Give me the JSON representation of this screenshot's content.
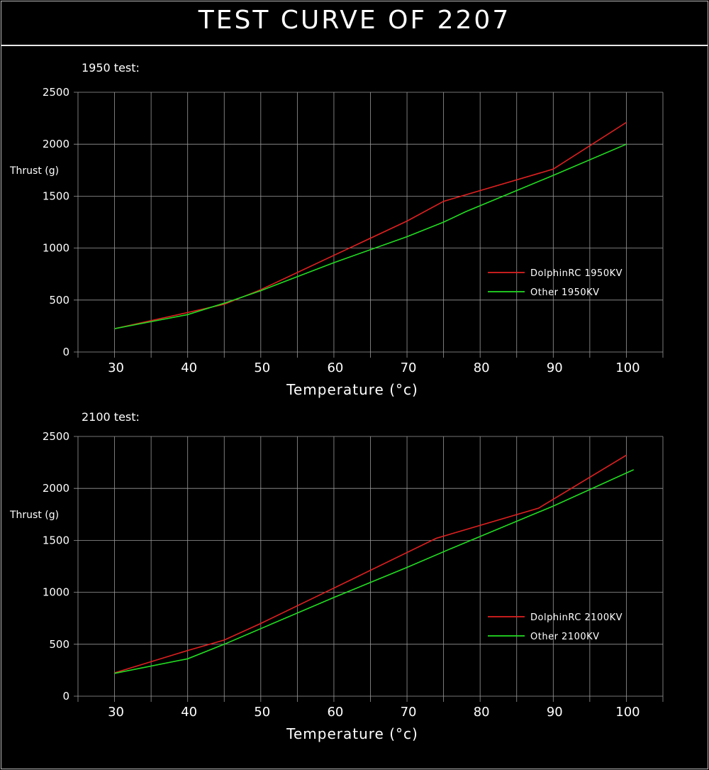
{
  "page": {
    "title": "TEST CURVE OF 2207"
  },
  "colors": {
    "background": "#000000",
    "grid": "#9a9a9a",
    "text": "#ffffff"
  },
  "chart_data": [
    {
      "type": "line",
      "subtitle": "1950 test:",
      "ylabel": "Thrust (g)",
      "xlabel": "Temperature (°c)",
      "xlim": [
        25,
        105
      ],
      "ylim": [
        0,
        2500
      ],
      "xticks": [
        30,
        40,
        50,
        60,
        70,
        80,
        90,
        100
      ],
      "yticks": [
        0,
        500,
        1000,
        1500,
        2000,
        2500
      ],
      "grid": true,
      "legend_position": "right-middle",
      "series": [
        {
          "name": "DolphinRC 1950KV",
          "color": "#e02020",
          "points": [
            [
              30,
              225
            ],
            [
              40,
              380
            ],
            [
              45,
              460
            ],
            [
              50,
              600
            ],
            [
              60,
              930
            ],
            [
              70,
              1260
            ],
            [
              75,
              1450
            ],
            [
              90,
              1760
            ],
            [
              100,
              2210
            ]
          ]
        },
        {
          "name": "Other 1950KV",
          "color": "#22dd22",
          "points": [
            [
              30,
              225
            ],
            [
              40,
              360
            ],
            [
              45,
              470
            ],
            [
              50,
              590
            ],
            [
              60,
              860
            ],
            [
              70,
              1110
            ],
            [
              75,
              1250
            ],
            [
              78,
              1350
            ],
            [
              90,
              1700
            ],
            [
              100,
              2000
            ]
          ]
        }
      ]
    },
    {
      "type": "line",
      "subtitle": "2100 test:",
      "ylabel": "Thrust (g)",
      "xlabel": "Temperature (°c)",
      "xlim": [
        25,
        105
      ],
      "ylim": [
        0,
        2500
      ],
      "xticks": [
        30,
        40,
        50,
        60,
        70,
        80,
        90,
        100
      ],
      "yticks": [
        0,
        500,
        1000,
        1500,
        2000,
        2500
      ],
      "grid": true,
      "legend_position": "right-middle",
      "series": [
        {
          "name": "DolphinRC 2100KV",
          "color": "#e02020",
          "points": [
            [
              30,
              225
            ],
            [
              40,
              440
            ],
            [
              45,
              540
            ],
            [
              50,
              700
            ],
            [
              60,
              1040
            ],
            [
              74,
              1520
            ],
            [
              88,
              1810
            ],
            [
              100,
              2320
            ]
          ]
        },
        {
          "name": "Other 2100KV",
          "color": "#22dd22",
          "points": [
            [
              30,
              220
            ],
            [
              40,
              360
            ],
            [
              45,
              500
            ],
            [
              50,
              650
            ],
            [
              60,
              950
            ],
            [
              70,
              1240
            ],
            [
              76,
              1420
            ],
            [
              90,
              1830
            ],
            [
              101,
              2180
            ]
          ]
        }
      ]
    }
  ]
}
